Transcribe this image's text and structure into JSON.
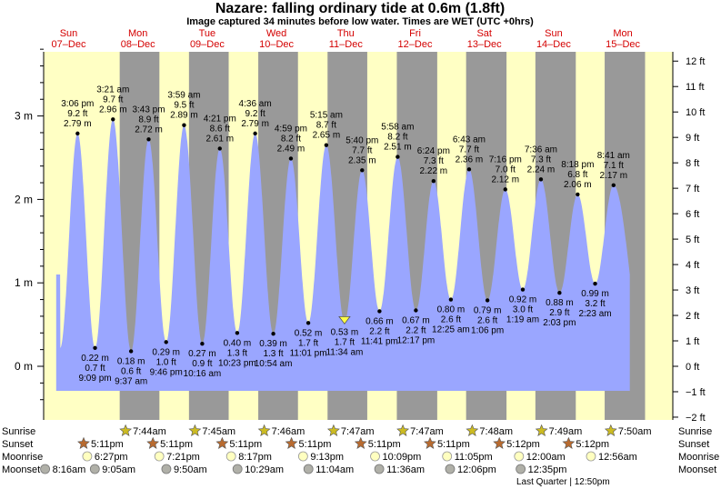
{
  "title": "Nazare: falling  ordinary tide at 0.6m (1.8ft)",
  "subtitle": "Image captured 34 minutes before low water. Times are WET (UTC +0hrs)",
  "colors": {
    "day_bg": "#ffffc4",
    "night_bg": "#999999",
    "tide_fill": "#9aa6ff",
    "day_label": "#d40000",
    "sun_star": "#ccbb22",
    "sunset_star": "#b86b30",
    "moonrise": "#ffffc0",
    "moonset": "#b0b0a8"
  },
  "days": [
    {
      "dow": "Sun",
      "date": "07–Dec"
    },
    {
      "dow": "Mon",
      "date": "08–Dec"
    },
    {
      "dow": "Tue",
      "date": "09–Dec"
    },
    {
      "dow": "Wed",
      "date": "10–Dec"
    },
    {
      "dow": "Thu",
      "date": "11–Dec"
    },
    {
      "dow": "Fri",
      "date": "12–Dec"
    },
    {
      "dow": "Sat",
      "date": "13–Dec"
    },
    {
      "dow": "Sun",
      "date": "14–Dec"
    },
    {
      "dow": "Mon",
      "date": "15–Dec"
    }
  ],
  "chart_data": {
    "type": "area",
    "left_axis": {
      "unit": "m",
      "ticks": [
        "0 m",
        "1 m",
        "2 m",
        "3 m"
      ],
      "range": [
        -0.45,
        3.85
      ]
    },
    "right_axis": {
      "unit": "ft",
      "ticks": [
        "−2 ft",
        "−1 ft",
        "0 ft",
        "1 ft",
        "2 ft",
        "3 ft",
        "4 ft",
        "5 ft",
        "6 ft",
        "7 ft",
        "8 ft",
        "9 ft",
        "10 ft",
        "11 ft",
        "12 ft"
      ]
    },
    "x_range_days": [
      -0.35,
      8.45
    ],
    "night_bands": [
      [
        0.737,
        1.31
      ],
      [
        1.737,
        2.31
      ],
      [
        2.737,
        3.31
      ],
      [
        3.737,
        4.31
      ],
      [
        4.737,
        5.32
      ],
      [
        5.737,
        6.32
      ],
      [
        6.737,
        7.32
      ],
      [
        7.737,
        8.32
      ]
    ],
    "tides": [
      {
        "type": "high",
        "t": 0.129,
        "m": 2.79,
        "time": "3:06 pm",
        "ft": "9.2 ft",
        "m_label": "2.79 m"
      },
      {
        "type": "low",
        "t": 0.381,
        "m": 0.22,
        "time": "9:09 pm",
        "ft": "0.7 ft",
        "m_label": "0.22 m"
      },
      {
        "type": "high",
        "t": 0.64,
        "m": 2.96,
        "time": "3:21 am",
        "ft": "9.7 ft",
        "m_label": "2.96 m"
      },
      {
        "type": "low",
        "t": 0.901,
        "m": 0.18,
        "time": "9:37 am",
        "ft": "0.6 ft",
        "m_label": "0.18 m"
      },
      {
        "type": "high",
        "t": 1.155,
        "m": 2.72,
        "time": "3:43 pm",
        "ft": "8.9 ft",
        "m_label": "2.72 m"
      },
      {
        "type": "low",
        "t": 1.407,
        "m": 0.29,
        "time": "9:46 pm",
        "ft": "1.0 ft",
        "m_label": "0.29 m"
      },
      {
        "type": "high",
        "t": 1.666,
        "m": 2.89,
        "time": "3:59 am",
        "ft": "9.5 ft",
        "m_label": "2.89 m"
      },
      {
        "type": "low",
        "t": 1.928,
        "m": 0.27,
        "time": "10:16 am",
        "ft": "0.9 ft",
        "m_label": "0.27 m"
      },
      {
        "type": "high",
        "t": 2.182,
        "m": 2.61,
        "time": "4:21 pm",
        "ft": "8.6 ft",
        "m_label": "2.61 m"
      },
      {
        "type": "low",
        "t": 2.433,
        "m": 0.4,
        "time": "10:23 pm",
        "ft": "1.3 ft",
        "m_label": "0.40 m"
      },
      {
        "type": "high",
        "t": 2.692,
        "m": 2.79,
        "time": "4:36 am",
        "ft": "9.2 ft",
        "m_label": "2.79 m"
      },
      {
        "type": "low",
        "t": 2.954,
        "m": 0.39,
        "time": "10:54 am",
        "ft": "1.3 ft",
        "m_label": "0.39 m"
      },
      {
        "type": "high",
        "t": 3.208,
        "m": 2.49,
        "time": "4:59 pm",
        "ft": "8.2 ft",
        "m_label": "2.49 m"
      },
      {
        "type": "low",
        "t": 3.459,
        "m": 0.52,
        "time": "11:01 pm",
        "ft": "1.7 ft",
        "m_label": "0.52 m"
      },
      {
        "type": "high",
        "t": 3.719,
        "m": 2.65,
        "time": "5:15 am",
        "ft": "8.7 ft",
        "m_label": "2.65 m"
      },
      {
        "type": "low",
        "t": 3.982,
        "m": 0.53,
        "time": "11:34 am",
        "ft": "1.7 ft",
        "m_label": "0.53 m",
        "current": true
      },
      {
        "type": "high",
        "t": 4.236,
        "m": 2.35,
        "time": "5:40 pm",
        "ft": "7.7 ft",
        "m_label": "2.35 m"
      },
      {
        "type": "low",
        "t": 4.487,
        "m": 0.66,
        "time": "11:41 pm",
        "ft": "2.2 ft",
        "m_label": "0.66 m"
      },
      {
        "type": "high",
        "t": 4.749,
        "m": 2.51,
        "time": "5:58 am",
        "ft": "8.2 ft",
        "m_label": "2.51 m"
      },
      {
        "type": "low",
        "t": 5.012,
        "m": 0.67,
        "time": "12:17 pm",
        "ft": "2.2 ft",
        "m_label": "0.67 m"
      },
      {
        "type": "high",
        "t": 5.267,
        "m": 2.22,
        "time": "6:24 pm",
        "ft": "7.3 ft",
        "m_label": "2.22 m"
      },
      {
        "type": "low",
        "t": 5.517,
        "m": 0.8,
        "time": "12:25 am",
        "ft": "2.6 ft",
        "m_label": "0.80 m"
      },
      {
        "type": "high",
        "t": 5.78,
        "m": 2.36,
        "time": "6:43 am",
        "ft": "7.7 ft",
        "m_label": "2.36 m"
      },
      {
        "type": "low",
        "t": 6.045,
        "m": 0.79,
        "time": "1:06 pm",
        "ft": "2.6 ft",
        "m_label": "0.79 m"
      },
      {
        "type": "high",
        "t": 6.303,
        "m": 2.12,
        "time": "7:16 pm",
        "ft": "7.0 ft",
        "m_label": "2.12 m"
      },
      {
        "type": "low",
        "t": 6.555,
        "m": 0.92,
        "time": "1:19 am",
        "ft": "3.0 ft",
        "m_label": "0.92 m"
      },
      {
        "type": "high",
        "t": 6.817,
        "m": 2.24,
        "time": "7:36 am",
        "ft": "7.3 ft",
        "m_label": "2.24 m"
      },
      {
        "type": "low",
        "t": 7.085,
        "m": 0.88,
        "time": "2:03 pm",
        "ft": "2.9 ft",
        "m_label": "0.88 m"
      },
      {
        "type": "high",
        "t": 7.347,
        "m": 2.06,
        "time": "8:18 pm",
        "ft": "6.8 ft",
        "m_label": "2.06 m"
      },
      {
        "type": "low",
        "t": 7.599,
        "m": 0.99,
        "time": "2:23 am",
        "ft": "3.2 ft",
        "m_label": "0.99 m"
      },
      {
        "type": "high",
        "t": 7.865,
        "m": 2.17,
        "time": "8:41 am",
        "ft": "7.1 ft",
        "m_label": "2.17 m"
      }
    ],
    "curve_end": {
      "t": 8.1,
      "m": 1.1
    }
  },
  "astro": {
    "row_labels": {
      "sunrise": "Sunrise",
      "sunset": "Sunset",
      "moonrise": "Moonrise",
      "moonset": "Moonset"
    },
    "sunrise": [
      {
        "t": 0.822,
        "time": "7:44am"
      },
      {
        "t": 1.823,
        "time": "7:45am"
      },
      {
        "t": 2.823,
        "time": "7:46am"
      },
      {
        "t": 3.824,
        "time": "7:47am"
      },
      {
        "t": 4.824,
        "time": "7:47am"
      },
      {
        "t": 5.825,
        "time": "7:48am"
      },
      {
        "t": 6.826,
        "time": "7:49am"
      },
      {
        "t": 7.826,
        "time": "7:50am"
      }
    ],
    "sunset": [
      {
        "t": 0.216,
        "time": "5:11pm"
      },
      {
        "t": 1.216,
        "time": "5:11pm"
      },
      {
        "t": 2.216,
        "time": "5:11pm"
      },
      {
        "t": 3.216,
        "time": "5:11pm"
      },
      {
        "t": 4.216,
        "time": "5:11pm"
      },
      {
        "t": 5.216,
        "time": "5:11pm"
      },
      {
        "t": 6.216,
        "time": "5:12pm"
      },
      {
        "t": 7.216,
        "time": "5:12pm"
      }
    ],
    "moonrise": [
      {
        "t": 0.268,
        "time": "6:27pm"
      },
      {
        "t": 1.308,
        "time": "7:21pm"
      },
      {
        "t": 2.345,
        "time": "8:17pm"
      },
      {
        "t": 3.384,
        "time": "9:13pm"
      },
      {
        "t": 4.423,
        "time": "10:09pm"
      },
      {
        "t": 5.462,
        "time": "11:05pm"
      },
      {
        "t": 6.5,
        "time": "12:00am"
      },
      {
        "t": 7.539,
        "time": "12:56am"
      }
    ],
    "moonset": [
      {
        "t": -0.34,
        "time": "8:16am"
      },
      {
        "t": 0.378,
        "time": "9:05am"
      },
      {
        "t": 1.41,
        "time": "9:50am"
      },
      {
        "t": 2.437,
        "time": "10:29am"
      },
      {
        "t": 3.461,
        "time": "11:04am"
      },
      {
        "t": 4.483,
        "time": "11:36am"
      },
      {
        "t": 5.505,
        "time": "12:06pm"
      },
      {
        "t": 6.524,
        "time": "12:35pm"
      }
    ],
    "moon_phase_note": "Last Quarter | 12:50pm"
  }
}
